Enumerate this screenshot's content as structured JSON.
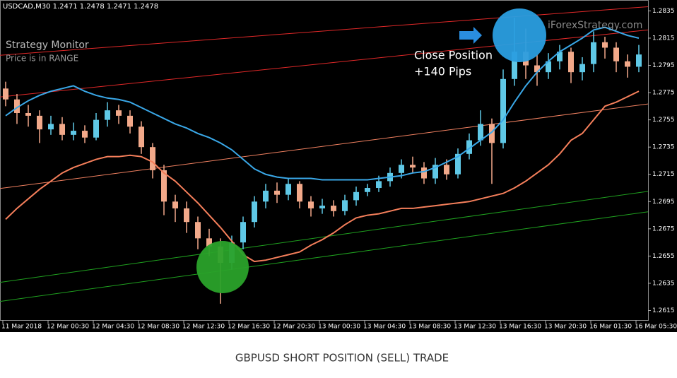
{
  "chart_data": {
    "type": "candlestick",
    "symbol_header": "USDCAD,M30  1.2471 1.2478 1.2471 1.2478",
    "panel_title": "Strategy Monitor",
    "panel_status": "Price is in RANGE",
    "watermark": "iForexStrategy.com",
    "annotation_lines": [
      "Close Position",
      "+140 Pips"
    ],
    "caption": "GBPUSD SHORT POSITION (SELL) TRADE",
    "xlabels": [
      "11 Mar 2018",
      "12 Mar 00:30",
      "12 Mar 04:30",
      "12 Mar 08:30",
      "12 Mar 12:30",
      "12 Mar 16:30",
      "12 Mar 20:30",
      "13 Mar 00:30",
      "13 Mar 04:30",
      "13 Mar 08:30",
      "13 Mar 12:30",
      "13 Mar 16:30",
      "13 Mar 20:30",
      "16 Mar 01:30",
      "16 Mar 05:30"
    ],
    "ylim": [
      1.2608,
      1.2843
    ],
    "yticks": [
      1.2835,
      1.2815,
      1.2795,
      1.2775,
      1.2755,
      1.2735,
      1.2715,
      1.2695,
      1.2675,
      1.2655,
      1.2635,
      1.2615
    ],
    "up_color": "#5fc8e6",
    "down_color": "#f2a98a",
    "open": [
      1.2778,
      1.277,
      1.276,
      1.2758,
      1.2748,
      1.2752,
      1.2744,
      1.2747,
      1.2742,
      1.2755,
      1.2762,
      1.2758,
      1.275,
      1.2735,
      1.2718,
      1.2695,
      1.269,
      1.268,
      1.2668,
      1.2662,
      1.265,
      1.2665,
      1.268,
      1.2695,
      1.2703,
      1.27,
      1.2708,
      1.2695,
      1.269,
      1.2692,
      1.2688,
      1.2696,
      1.2702,
      1.2705,
      1.271,
      1.2716,
      1.2722,
      1.272,
      1.2712,
      1.2722,
      1.2715,
      1.273,
      1.274,
      1.2752,
      1.2738,
      1.2785,
      1.2805,
      1.2795,
      1.279,
      1.2798,
      1.2805,
      1.279,
      1.2796,
      1.2812,
      1.2808,
      1.2798,
      1.2794
    ],
    "high": [
      1.2783,
      1.2774,
      1.2766,
      1.2762,
      1.2758,
      1.2757,
      1.2753,
      1.2751,
      1.276,
      1.2768,
      1.2766,
      1.2762,
      1.2754,
      1.2738,
      1.2722,
      1.27,
      1.2695,
      1.2684,
      1.2675,
      1.2668,
      1.267,
      1.2684,
      1.2699,
      1.2708,
      1.2709,
      1.2712,
      1.271,
      1.2699,
      1.2697,
      1.2696,
      1.27,
      1.2706,
      1.2708,
      1.2714,
      1.272,
      1.2726,
      1.2728,
      1.2724,
      1.2727,
      1.2726,
      1.2734,
      1.2745,
      1.2762,
      1.2756,
      1.2792,
      1.283,
      1.2822,
      1.2803,
      1.2804,
      1.281,
      1.2808,
      1.2801,
      1.282,
      1.2816,
      1.2812,
      1.2803,
      1.281
    ],
    "low": [
      1.2765,
      1.2752,
      1.275,
      1.2738,
      1.2744,
      1.274,
      1.274,
      1.2738,
      1.274,
      1.275,
      1.2752,
      1.2745,
      1.273,
      1.2712,
      1.2685,
      1.268,
      1.2672,
      1.266,
      1.2655,
      1.262,
      1.2645,
      1.266,
      1.2676,
      1.269,
      1.2694,
      1.2696,
      1.269,
      1.2684,
      1.2686,
      1.2684,
      1.2685,
      1.2692,
      1.2699,
      1.2702,
      1.2706,
      1.2712,
      1.2716,
      1.2708,
      1.2708,
      1.2711,
      1.2712,
      1.2726,
      1.2736,
      1.2708,
      1.2734,
      1.278,
      1.2785,
      1.278,
      1.2785,
      1.2792,
      1.2782,
      1.2784,
      1.279,
      1.28,
      1.279,
      1.2786,
      1.279
    ],
    "close": [
      1.277,
      1.276,
      1.2758,
      1.2748,
      1.2752,
      1.2744,
      1.2747,
      1.2742,
      1.2755,
      1.2762,
      1.2758,
      1.275,
      1.2735,
      1.2718,
      1.2695,
      1.269,
      1.268,
      1.2668,
      1.2662,
      1.265,
      1.2665,
      1.268,
      1.2695,
      1.2703,
      1.27,
      1.2708,
      1.2695,
      1.269,
      1.2692,
      1.2688,
      1.2696,
      1.2702,
      1.2705,
      1.271,
      1.2716,
      1.2722,
      1.272,
      1.2712,
      1.2722,
      1.2715,
      1.273,
      1.274,
      1.2752,
      1.2738,
      1.2785,
      1.2805,
      1.2795,
      1.279,
      1.2798,
      1.2805,
      1.279,
      1.2796,
      1.2812,
      1.2808,
      1.2798,
      1.2794,
      1.2803
    ],
    "series": [
      {
        "color": "#3aa8e8",
        "values": [
          1.2758,
          1.2764,
          1.2769,
          1.2773,
          1.2776,
          1.2778,
          1.278,
          1.2776,
          1.2773,
          1.2771,
          1.277,
          1.2768,
          1.2764,
          1.276,
          1.2756,
          1.2752,
          1.2749,
          1.2745,
          1.2742,
          1.2738,
          1.2733,
          1.2726,
          1.2719,
          1.2715,
          1.2713,
          1.2712,
          1.2712,
          1.2712,
          1.2711,
          1.2711,
          1.2711,
          1.2711,
          1.2711,
          1.2712,
          1.2713,
          1.2714,
          1.2716,
          1.2717,
          1.272,
          1.2724,
          1.2728,
          1.2734,
          1.274,
          1.2746,
          1.2755,
          1.2768,
          1.278,
          1.279,
          1.2798,
          1.2805,
          1.281,
          1.2815,
          1.2821,
          1.2823,
          1.282,
          1.2817,
          1.2815
        ]
      },
      {
        "color": "#f57f5b",
        "values": [
          1.2682,
          1.269,
          1.2697,
          1.2704,
          1.271,
          1.2716,
          1.272,
          1.2723,
          1.2726,
          1.2728,
          1.2728,
          1.2729,
          1.2728,
          1.2724,
          1.2716,
          1.271,
          1.2702,
          1.2694,
          1.2685,
          1.2676,
          1.2666,
          1.2656,
          1.2651,
          1.2652,
          1.2654,
          1.2656,
          1.2658,
          1.2663,
          1.2667,
          1.2672,
          1.2678,
          1.2683,
          1.2685,
          1.2686,
          1.2688,
          1.269,
          1.269,
          1.2691,
          1.2692,
          1.2693,
          1.2694,
          1.2695,
          1.2697,
          1.2699,
          1.2701,
          1.2705,
          1.271,
          1.2716,
          1.2722,
          1.273,
          1.274,
          1.2745,
          1.2755,
          1.2765,
          1.2768,
          1.2772,
          1.2776
        ]
      }
    ],
    "channels": [
      {
        "color": "#e02828",
        "start": 1.27718,
        "end": 1.2821
      },
      {
        "color": "#e02828",
        "start": 1.28024,
        "end": 1.28381
      },
      {
        "color": "#f08060",
        "start": 1.27046,
        "end": 1.27667
      },
      {
        "color": "#1fa01f",
        "start": 1.26357,
        "end": 1.27025
      },
      {
        "color": "#1fa01f",
        "start": 1.26217,
        "end": 1.26875
      }
    ]
  }
}
